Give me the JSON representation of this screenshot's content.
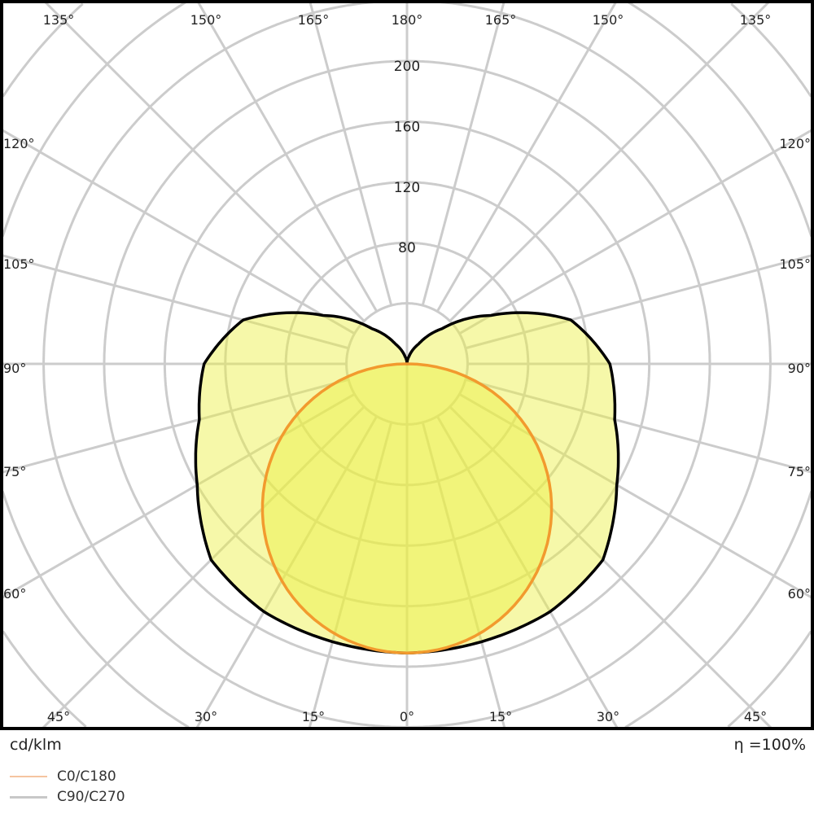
{
  "chart_data": {
    "type": "polar",
    "unit_label": "cd/klm",
    "efficiency_label": "η =100%",
    "radial_ticks": [
      80,
      120,
      160,
      200
    ],
    "radial_grid_step": 40,
    "angle_step_deg": 15,
    "angle_labels": {
      "top": [
        "135°",
        "150°",
        "165°",
        "180°",
        "165°",
        "150°",
        "135°"
      ],
      "left": [
        "120°",
        "105°",
        "90°",
        "75°",
        "60°"
      ],
      "right": [
        "120°",
        "105°",
        "90°",
        "75°",
        "60°"
      ],
      "bottom": [
        "45°",
        "30°",
        "15°",
        "0°",
        "15°",
        "30°",
        "45°"
      ]
    },
    "angles_deg": [
      0,
      15,
      30,
      45,
      60,
      75,
      90,
      105,
      120,
      135,
      150,
      165,
      180
    ],
    "series": [
      {
        "name": "C0/C180",
        "color": "#f29a2e",
        "legend_color": "#f5c4a0",
        "values": [
          191,
          184,
          165,
          135,
          96,
          49,
          0,
          0,
          0,
          0,
          0,
          0,
          0
        ]
      },
      {
        "name": "C90/C270",
        "color": "#000000",
        "legend_color": "#c8c8c8",
        "values": [
          191,
          190,
          189,
          183,
          160,
          142,
          134,
          112,
          64,
          33,
          15,
          5,
          0
        ]
      }
    ],
    "colors": {
      "grid": "#cccccc",
      "fill": "#eaf040",
      "frame": "#000000"
    }
  }
}
